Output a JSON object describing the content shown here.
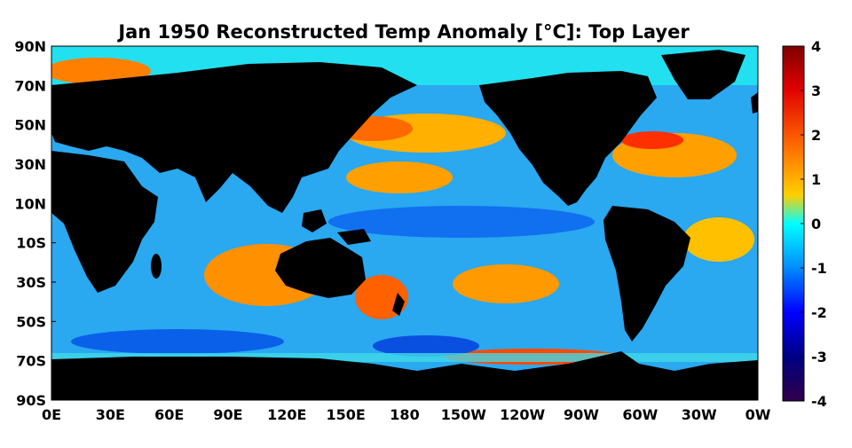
{
  "title": "Jan 1950 Reconstructed Temp Anomaly [°C]: Top Layer",
  "chart_data": {
    "type": "heatmap",
    "map_projection": "equirectangular",
    "lon_range": [
      0,
      360
    ],
    "lat_range": [
      -90,
      90
    ],
    "x_ticks": [
      "0E",
      "30E",
      "60E",
      "90E",
      "120E",
      "150E",
      "180",
      "150W",
      "120W",
      "90W",
      "60W",
      "30W",
      "0W"
    ],
    "y_ticks": [
      "90N",
      "70N",
      "50N",
      "30N",
      "10N",
      "10S",
      "30S",
      "50S",
      "70S",
      "90S"
    ],
    "colorbar": {
      "ticks": [
        "4",
        "3",
        "2",
        "1",
        "0",
        "-1",
        "-2",
        "-3",
        "-4"
      ],
      "range": [
        -4,
        4
      ],
      "colormap": "jet"
    },
    "land_color": "#000000"
  }
}
